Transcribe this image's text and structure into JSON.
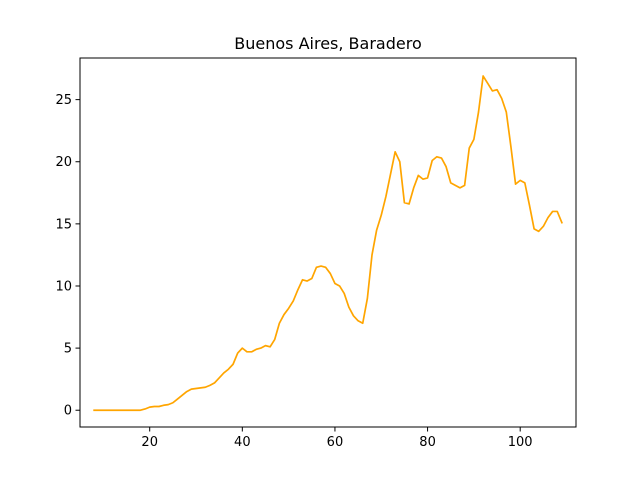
{
  "chart_data": {
    "type": "line",
    "title": "Buenos Aires, Baradero",
    "xlabel": "",
    "ylabel": "",
    "xlim": [
      4.95,
      112.05
    ],
    "ylim": [
      -1.35,
      28.35
    ],
    "grid": false,
    "x_ticks": [
      20,
      40,
      60,
      80,
      100
    ],
    "y_ticks": [
      0,
      5,
      10,
      15,
      20,
      25
    ],
    "x_tick_labels": [
      "20",
      "40",
      "60",
      "80",
      "100"
    ],
    "y_tick_labels": [
      "0",
      "5",
      "10",
      "15",
      "20",
      "25"
    ],
    "series": [
      {
        "color": "#ffa500",
        "x": [
          8,
          9,
          10,
          11,
          12,
          13,
          14,
          15,
          16,
          17,
          18,
          19,
          20,
          21,
          22,
          23,
          24,
          25,
          26,
          27,
          28,
          29,
          30,
          31,
          32,
          33,
          34,
          35,
          36,
          37,
          38,
          39,
          40,
          41,
          42,
          43,
          44,
          45,
          46,
          47,
          48,
          49,
          50,
          51,
          52,
          53,
          54,
          55,
          56,
          57,
          58,
          59,
          60,
          61,
          62,
          63,
          64,
          65,
          66,
          67,
          68,
          69,
          70,
          71,
          72,
          73,
          74,
          75,
          76,
          77,
          78,
          79,
          80,
          81,
          82,
          83,
          84,
          85,
          86,
          87,
          88,
          89,
          90,
          91,
          92,
          93,
          94,
          95,
          96,
          97,
          98,
          99,
          100,
          101,
          102,
          103,
          104,
          105,
          106,
          107,
          108,
          109
        ],
        "y": [
          0,
          0,
          0,
          0,
          0,
          0,
          0,
          0,
          0,
          0,
          0,
          0.1,
          0.25,
          0.3,
          0.3,
          0.4,
          0.45,
          0.6,
          0.9,
          1.2,
          1.5,
          1.7,
          1.75,
          1.8,
          1.85,
          2.0,
          2.2,
          2.6,
          3.0,
          3.3,
          3.7,
          4.6,
          5.0,
          4.7,
          4.7,
          4.9,
          5.0,
          5.2,
          5.1,
          5.7,
          7.0,
          7.7,
          8.2,
          8.8,
          9.7,
          10.5,
          10.4,
          10.6,
          11.5,
          11.6,
          11.5,
          11.0,
          10.2,
          10.0,
          9.4,
          8.3,
          7.6,
          7.2,
          7.0,
          9.0,
          12.5,
          14.5,
          15.7,
          17.2,
          19.0,
          20.8,
          20.0,
          16.7,
          16.6,
          17.9,
          18.9,
          18.6,
          18.7,
          20.1,
          20.4,
          20.3,
          19.6,
          18.3,
          18.1,
          17.9,
          18.1,
          21.1,
          21.8,
          24.0,
          26.9,
          26.3,
          25.7,
          25.8,
          25.1,
          24.0,
          21.2,
          18.2,
          18.5,
          18.3,
          16.5,
          14.6,
          14.4,
          14.8,
          15.5,
          16.0,
          16.0,
          15.1
        ]
      }
    ]
  }
}
